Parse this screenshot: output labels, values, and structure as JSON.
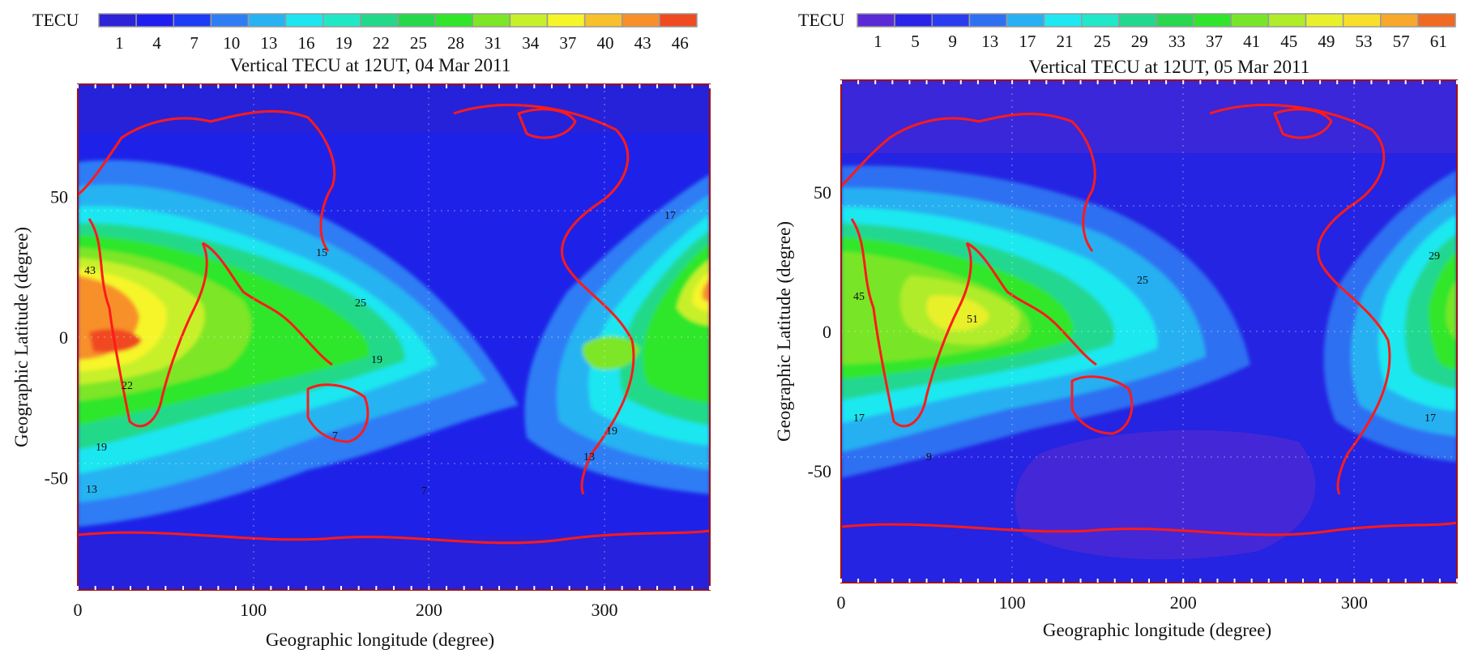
{
  "colors": {
    "plot_background": "#1f21e6",
    "coastline": "#ff1a1a",
    "frame": "#a01010",
    "colorbar_left": [
      "#2f23d8",
      "#1f1ff0",
      "#1e3cf5",
      "#2f7df5",
      "#27b3f2",
      "#1de6f0",
      "#21e8c4",
      "#22d98a",
      "#27d94a",
      "#2fe62a",
      "#7de626",
      "#c8f02a",
      "#f5f52a",
      "#f8c02a",
      "#f8902a",
      "#f04a22"
    ],
    "colorbar_right": [
      "#5a2ad6",
      "#2a24e8",
      "#2a3cf0",
      "#2f70f2",
      "#27b0f2",
      "#1fe8f0",
      "#20e8c8",
      "#22d890",
      "#28d950",
      "#30e62c",
      "#78e628",
      "#b0ec2a",
      "#e8f02c",
      "#f8e02a",
      "#f8a82a",
      "#f06a22"
    ]
  },
  "chart_data": [
    {
      "type": "heatmap",
      "title": "Vertical TECU at 12UT, 04 Mar 2011",
      "colorbar_label": "TECU",
      "colorbar_ticks": [
        "1",
        "4",
        "7",
        "10",
        "13",
        "16",
        "19",
        "22",
        "25",
        "28",
        "31",
        "34",
        "37",
        "40",
        "43",
        "46"
      ],
      "xlabel": "Geographic longitude (degree)",
      "ylabel": "Geographic Latitude (degree)",
      "x_ticks": [
        "0",
        "100",
        "200",
        "300"
      ],
      "y_ticks": [
        "50",
        "0",
        "-50"
      ],
      "xlim": [
        0,
        360
      ],
      "ylim": [
        -90,
        90
      ],
      "contour_labels": [
        "43",
        "25",
        "19",
        "19",
        "13",
        "17",
        "7",
        "19",
        "15",
        "13",
        "7",
        "22"
      ],
      "peak_regions": [
        {
          "lon": 20,
          "lat": -2,
          "tecu": 46
        },
        {
          "lon": 345,
          "lat": 18,
          "tecu": 43
        },
        {
          "lon": 300,
          "lat": -8,
          "tecu": 31
        }
      ]
    },
    {
      "type": "heatmap",
      "title": "Vertical TECU at 12UT, 05 Mar 2011",
      "colorbar_label": "TECU",
      "colorbar_ticks": [
        "1",
        "5",
        "9",
        "13",
        "17",
        "21",
        "25",
        "29",
        "33",
        "37",
        "41",
        "45",
        "49",
        "53",
        "57",
        "61"
      ],
      "xlabel": "Geographic longitude (degree)",
      "ylabel": "Geographic Latitude (degree)",
      "x_ticks": [
        "0",
        "100",
        "200",
        "300"
      ],
      "y_ticks": [
        "50",
        "0",
        "-50"
      ],
      "xlim": [
        0,
        360
      ],
      "ylim": [
        -90,
        90
      ],
      "contour_labels": [
        "45",
        "25",
        "51",
        "17",
        "9",
        "29",
        "17"
      ],
      "peak_regions": [
        {
          "lon": 90,
          "lat": -5,
          "tecu": 53
        },
        {
          "lon": 20,
          "lat": 10,
          "tecu": 45
        },
        {
          "lon": 320,
          "lat": -5,
          "tecu": 41
        }
      ]
    }
  ]
}
